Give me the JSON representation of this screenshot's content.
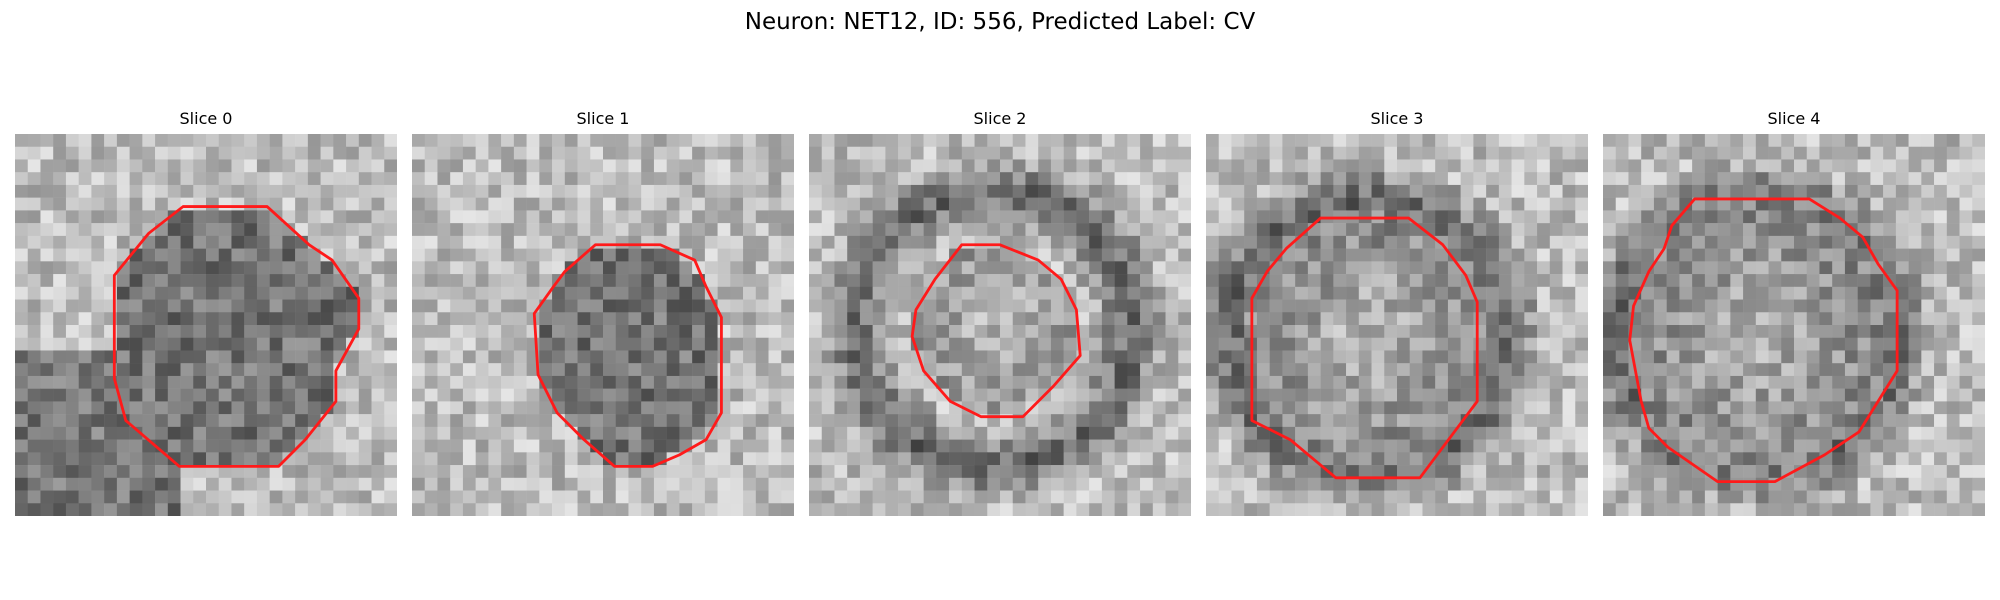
{
  "figure": {
    "title": "Neuron: NET12, ID: 556, Predicted Label: CV",
    "contour_color": "#ff1a1a",
    "panels": [
      {
        "title": "Slice 0",
        "tone": "light-with-dark-lower-left",
        "inner_tone": "mid-gray",
        "seed": 11,
        "contour": [
          [
            0.44,
            0.19
          ],
          [
            0.66,
            0.19
          ],
          [
            0.77,
            0.29
          ],
          [
            0.83,
            0.33
          ],
          [
            0.9,
            0.43
          ],
          [
            0.9,
            0.51
          ],
          [
            0.84,
            0.62
          ],
          [
            0.84,
            0.7
          ],
          [
            0.76,
            0.8
          ],
          [
            0.69,
            0.87
          ],
          [
            0.43,
            0.87
          ],
          [
            0.29,
            0.75
          ],
          [
            0.26,
            0.64
          ],
          [
            0.26,
            0.37
          ],
          [
            0.35,
            0.26
          ]
        ]
      },
      {
        "title": "Slice 1",
        "tone": "light",
        "inner_tone": "mid-gray",
        "seed": 23,
        "contour": [
          [
            0.48,
            0.29
          ],
          [
            0.65,
            0.29
          ],
          [
            0.74,
            0.33
          ],
          [
            0.77,
            0.4
          ],
          [
            0.81,
            0.48
          ],
          [
            0.81,
            0.73
          ],
          [
            0.77,
            0.8
          ],
          [
            0.7,
            0.84
          ],
          [
            0.63,
            0.87
          ],
          [
            0.53,
            0.87
          ],
          [
            0.45,
            0.8
          ],
          [
            0.38,
            0.73
          ],
          [
            0.33,
            0.63
          ],
          [
            0.32,
            0.47
          ],
          [
            0.37,
            0.4
          ],
          [
            0.4,
            0.36
          ]
        ]
      },
      {
        "title": "Slice 2",
        "tone": "mid-with-dark-ring",
        "inner_tone": "light-center",
        "seed": 37,
        "contour": [
          [
            0.4,
            0.29
          ],
          [
            0.5,
            0.29
          ],
          [
            0.6,
            0.33
          ],
          [
            0.66,
            0.38
          ],
          [
            0.7,
            0.46
          ],
          [
            0.71,
            0.58
          ],
          [
            0.64,
            0.66
          ],
          [
            0.56,
            0.74
          ],
          [
            0.45,
            0.74
          ],
          [
            0.37,
            0.7
          ],
          [
            0.3,
            0.62
          ],
          [
            0.27,
            0.53
          ],
          [
            0.28,
            0.46
          ],
          [
            0.33,
            0.38
          ]
        ]
      },
      {
        "title": "Slice 3",
        "tone": "light-with-dark-ring",
        "inner_tone": "light-center",
        "seed": 51,
        "contour": [
          [
            0.3,
            0.22
          ],
          [
            0.53,
            0.22
          ],
          [
            0.62,
            0.29
          ],
          [
            0.68,
            0.37
          ],
          [
            0.71,
            0.44
          ],
          [
            0.71,
            0.7
          ],
          [
            0.65,
            0.78
          ],
          [
            0.56,
            0.9
          ],
          [
            0.34,
            0.9
          ],
          [
            0.22,
            0.8
          ],
          [
            0.12,
            0.75
          ],
          [
            0.12,
            0.43
          ],
          [
            0.16,
            0.36
          ],
          [
            0.21,
            0.3
          ]
        ]
      },
      {
        "title": "Slice 4",
        "tone": "light-with-dark-ring",
        "inner_tone": "light-center",
        "seed": 67,
        "contour": [
          [
            0.24,
            0.17
          ],
          [
            0.54,
            0.17
          ],
          [
            0.62,
            0.22
          ],
          [
            0.68,
            0.27
          ],
          [
            0.72,
            0.34
          ],
          [
            0.77,
            0.41
          ],
          [
            0.77,
            0.62
          ],
          [
            0.72,
            0.7
          ],
          [
            0.67,
            0.78
          ],
          [
            0.58,
            0.84
          ],
          [
            0.45,
            0.91
          ],
          [
            0.3,
            0.91
          ],
          [
            0.17,
            0.82
          ],
          [
            0.12,
            0.77
          ],
          [
            0.1,
            0.7
          ],
          [
            0.07,
            0.54
          ],
          [
            0.08,
            0.45
          ],
          [
            0.12,
            0.36
          ],
          [
            0.16,
            0.3
          ],
          [
            0.18,
            0.24
          ]
        ]
      }
    ]
  }
}
